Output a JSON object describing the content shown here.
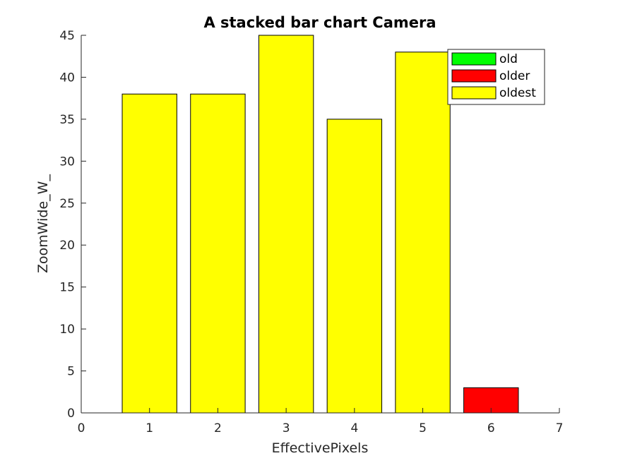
{
  "chart_data": {
    "type": "bar",
    "stacked": true,
    "title": "A stacked bar chart Camera",
    "xlabel": "EffectivePixels",
    "ylabel": "ZoomWide_W_",
    "xlim": [
      0,
      7
    ],
    "ylim": [
      0,
      45
    ],
    "xticks": [
      "0",
      "1",
      "2",
      "3",
      "4",
      "5",
      "6",
      "7"
    ],
    "yticks": [
      "0",
      "5",
      "10",
      "15",
      "20",
      "25",
      "30",
      "35",
      "40",
      "45"
    ],
    "x": [
      1,
      2,
      3,
      4,
      5,
      6
    ],
    "series": [
      {
        "name": "old",
        "color": "#00ff00",
        "values": [
          0,
          0,
          0,
          0,
          0,
          0
        ]
      },
      {
        "name": "older",
        "color": "#ff0000",
        "values": [
          0,
          0,
          0,
          0,
          0,
          3
        ]
      },
      {
        "name": "oldest",
        "color": "#ffff00",
        "values": [
          38,
          38,
          45,
          35,
          43,
          0
        ]
      }
    ],
    "grid": false,
    "legend_position": "top-right"
  }
}
